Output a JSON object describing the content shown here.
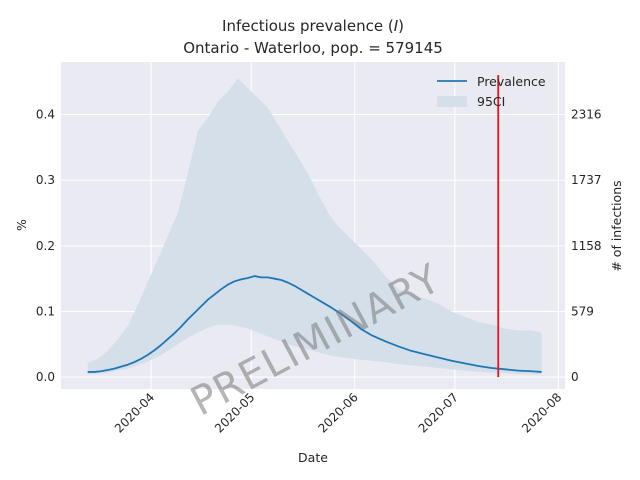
{
  "chart_data": {
    "type": "line",
    "title_line1_prefix": "Infectious prevalence (",
    "title_line1_italic": "I",
    "title_line1_suffix": ")",
    "title_line2": "Ontario - Waterloo, pop. = 579145",
    "xlabel": "Date",
    "ylabel": "%",
    "ylabel_right": "# of infections",
    "watermark": "PRELIMINARY",
    "x_tick_labels": [
      "2020-04",
      "2020-05",
      "2020-06",
      "2020-07",
      "2020-08"
    ],
    "x_tick_dates": [
      "2020-04-01",
      "2020-05-01",
      "2020-06-01",
      "2020-07-01",
      "2020-08-01"
    ],
    "xlim": [
      "2020-03-05",
      "2020-08-03"
    ],
    "y_ticks": [
      0.0,
      0.1,
      0.2,
      0.3,
      0.4
    ],
    "y_tick_labels": [
      "0.0",
      "0.1",
      "0.2",
      "0.3",
      "0.4"
    ],
    "ylim": [
      -0.018,
      0.48
    ],
    "y_right_ticks": [
      0,
      579,
      1158,
      1737,
      2316
    ],
    "y_right_tick_labels": [
      "0",
      "579",
      "1158",
      "1737",
      "2316"
    ],
    "grid": true,
    "legend_position": "top-right",
    "legend": [
      "Prevalence",
      "95CI"
    ],
    "vline": {
      "date": "2020-07-14",
      "color": "#e8141a"
    },
    "colors": {
      "line": "#1f77b4",
      "band": "#d4dfea",
      "axes_bg": "#eaeaf2",
      "grid": "#ffffff"
    },
    "series": [
      {
        "name": "Prevalence",
        "x": [
          "2020-03-13",
          "2020-03-15",
          "2020-03-17",
          "2020-03-19",
          "2020-03-21",
          "2020-03-23",
          "2020-03-25",
          "2020-03-27",
          "2020-03-29",
          "2020-03-31",
          "2020-04-02",
          "2020-04-04",
          "2020-04-06",
          "2020-04-08",
          "2020-04-10",
          "2020-04-12",
          "2020-04-14",
          "2020-04-16",
          "2020-04-18",
          "2020-04-20",
          "2020-04-22",
          "2020-04-24",
          "2020-04-26",
          "2020-04-28",
          "2020-04-30",
          "2020-05-02",
          "2020-05-04",
          "2020-05-06",
          "2020-05-08",
          "2020-05-10",
          "2020-05-12",
          "2020-05-14",
          "2020-05-16",
          "2020-05-18",
          "2020-05-20",
          "2020-05-22",
          "2020-05-25",
          "2020-05-28",
          "2020-05-31",
          "2020-06-03",
          "2020-06-06",
          "2020-06-10",
          "2020-06-14",
          "2020-06-18",
          "2020-06-22",
          "2020-06-26",
          "2020-06-30",
          "2020-07-04",
          "2020-07-08",
          "2020-07-12",
          "2020-07-16",
          "2020-07-20",
          "2020-07-24",
          "2020-07-27"
        ],
        "values": [
          0.008,
          0.008,
          0.009,
          0.011,
          0.013,
          0.016,
          0.019,
          0.023,
          0.028,
          0.034,
          0.041,
          0.049,
          0.058,
          0.067,
          0.077,
          0.088,
          0.098,
          0.108,
          0.118,
          0.126,
          0.134,
          0.141,
          0.146,
          0.149,
          0.151,
          0.154,
          0.152,
          0.152,
          0.15,
          0.148,
          0.144,
          0.139,
          0.133,
          0.127,
          0.121,
          0.115,
          0.106,
          0.096,
          0.085,
          0.073,
          0.064,
          0.055,
          0.047,
          0.04,
          0.035,
          0.03,
          0.025,
          0.021,
          0.017,
          0.014,
          0.012,
          0.01,
          0.009,
          0.008
        ]
      },
      {
        "name": "95CI",
        "x": [
          "2020-03-13",
          "2020-03-16",
          "2020-03-19",
          "2020-03-22",
          "2020-03-25",
          "2020-03-28",
          "2020-03-31",
          "2020-04-03",
          "2020-04-06",
          "2020-04-09",
          "2020-04-12",
          "2020-04-15",
          "2020-04-18",
          "2020-04-21",
          "2020-04-24",
          "2020-04-27",
          "2020-04-30",
          "2020-05-03",
          "2020-05-06",
          "2020-05-09",
          "2020-05-12",
          "2020-05-15",
          "2020-05-18",
          "2020-05-21",
          "2020-05-24",
          "2020-05-27",
          "2020-05-30",
          "2020-06-02",
          "2020-06-06",
          "2020-06-10",
          "2020-06-14",
          "2020-06-18",
          "2020-06-22",
          "2020-06-26",
          "2020-06-30",
          "2020-07-04",
          "2020-07-08",
          "2020-07-12",
          "2020-07-16",
          "2020-07-20",
          "2020-07-24",
          "2020-07-27"
        ],
        "lower": [
          0.004,
          0.005,
          0.007,
          0.01,
          0.013,
          0.018,
          0.024,
          0.031,
          0.04,
          0.05,
          0.06,
          0.068,
          0.075,
          0.08,
          0.08,
          0.078,
          0.074,
          0.068,
          0.062,
          0.056,
          0.05,
          0.046,
          0.042,
          0.038,
          0.034,
          0.031,
          0.029,
          0.027,
          0.025,
          0.023,
          0.02,
          0.018,
          0.016,
          0.014,
          0.012,
          0.01,
          0.008,
          0.007,
          0.006,
          0.005,
          0.004,
          0.004
        ],
        "upper": [
          0.022,
          0.028,
          0.04,
          0.058,
          0.078,
          0.11,
          0.145,
          0.18,
          0.215,
          0.25,
          0.31,
          0.375,
          0.395,
          0.42,
          0.435,
          0.455,
          0.44,
          0.425,
          0.41,
          0.385,
          0.36,
          0.335,
          0.31,
          0.28,
          0.25,
          0.23,
          0.215,
          0.2,
          0.18,
          0.155,
          0.135,
          0.125,
          0.12,
          0.112,
          0.1,
          0.092,
          0.084,
          0.08,
          0.074,
          0.071,
          0.071,
          0.068
        ]
      }
    ]
  }
}
